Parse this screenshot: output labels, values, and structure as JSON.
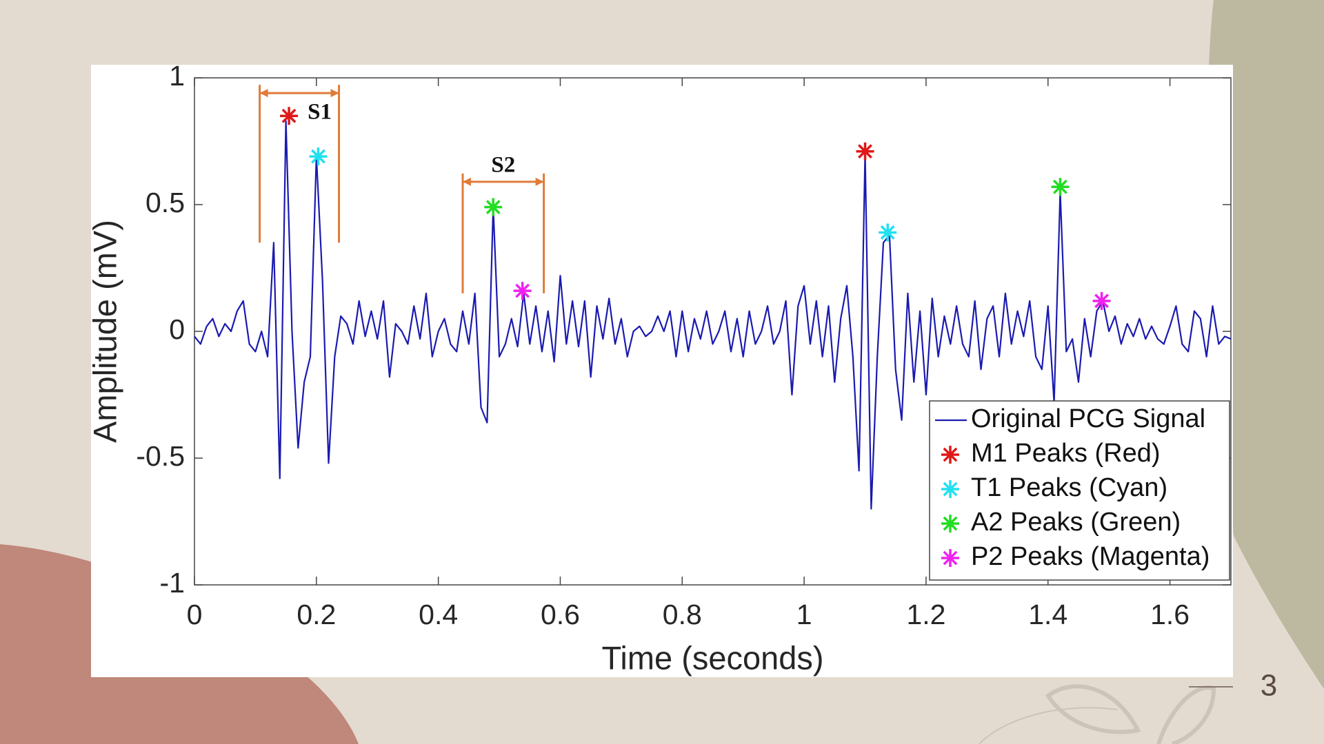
{
  "page_number": "3",
  "chart_data": {
    "type": "line",
    "xlabel": "Time (seconds)",
    "ylabel": "Amplitude (mV)",
    "xlim": [
      0,
      1.7
    ],
    "ylim": [
      -1,
      1
    ],
    "xticks": [
      0,
      0.2,
      0.4,
      0.6,
      0.8,
      1,
      1.2,
      1.4,
      1.6
    ],
    "yticks": [
      -1,
      -0.5,
      0,
      0.5,
      1
    ],
    "grid": false,
    "legend": "lower right",
    "series": [
      {
        "name": "Original PCG Signal",
        "type": "line",
        "color": "#1a1ab0",
        "x": [
          0,
          0.01,
          0.02,
          0.03,
          0.04,
          0.05,
          0.06,
          0.07,
          0.08,
          0.09,
          0.1,
          0.11,
          0.12,
          0.13,
          0.14,
          0.15,
          0.16,
          0.17,
          0.18,
          0.19,
          0.2,
          0.21,
          0.22,
          0.23,
          0.24,
          0.25,
          0.26,
          0.27,
          0.28,
          0.29,
          0.3,
          0.31,
          0.32,
          0.33,
          0.34,
          0.35,
          0.36,
          0.37,
          0.38,
          0.39,
          0.4,
          0.41,
          0.42,
          0.43,
          0.44,
          0.45,
          0.46,
          0.47,
          0.48,
          0.49,
          0.5,
          0.51,
          0.52,
          0.53,
          0.54,
          0.55,
          0.56,
          0.57,
          0.58,
          0.59,
          0.6,
          0.61,
          0.62,
          0.63,
          0.64,
          0.65,
          0.66,
          0.67,
          0.68,
          0.69,
          0.7,
          0.71,
          0.72,
          0.73,
          0.74,
          0.75,
          0.76,
          0.77,
          0.78,
          0.79,
          0.8,
          0.81,
          0.82,
          0.83,
          0.84,
          0.85,
          0.86,
          0.87,
          0.88,
          0.89,
          0.9,
          0.91,
          0.92,
          0.93,
          0.94,
          0.95,
          0.96,
          0.97,
          0.98,
          0.99,
          1,
          1.01,
          1.02,
          1.03,
          1.04,
          1.05,
          1.06,
          1.07,
          1.08,
          1.09,
          1.1,
          1.11,
          1.12,
          1.13,
          1.14,
          1.15,
          1.16,
          1.17,
          1.18,
          1.19,
          1.2,
          1.21,
          1.22,
          1.23,
          1.24,
          1.25,
          1.26,
          1.27,
          1.28,
          1.29,
          1.3,
          1.31,
          1.32,
          1.33,
          1.34,
          1.35,
          1.36,
          1.37,
          1.38,
          1.39,
          1.4,
          1.41,
          1.42,
          1.43,
          1.44,
          1.45,
          1.46,
          1.47,
          1.48,
          1.49,
          1.5,
          1.51,
          1.52,
          1.53,
          1.54,
          1.55,
          1.56,
          1.57,
          1.58,
          1.59,
          1.6,
          1.61,
          1.62,
          1.63,
          1.64,
          1.65,
          1.66,
          1.67,
          1.68,
          1.69,
          1.7
        ],
        "values": [
          -0.02,
          -0.05,
          0.02,
          0.05,
          -0.02,
          0.03,
          0.0,
          0.08,
          0.12,
          -0.05,
          -0.08,
          0.0,
          -0.1,
          0.35,
          -0.58,
          0.83,
          0.0,
          -0.46,
          -0.2,
          -0.1,
          0.69,
          0.2,
          -0.52,
          -0.1,
          0.06,
          0.03,
          -0.05,
          0.12,
          -0.02,
          0.08,
          -0.03,
          0.12,
          -0.18,
          0.03,
          0.0,
          -0.05,
          0.1,
          -0.03,
          0.15,
          -0.1,
          0.0,
          0.05,
          -0.05,
          -0.08,
          0.08,
          -0.05,
          0.15,
          -0.3,
          -0.36,
          0.49,
          -0.1,
          -0.05,
          0.05,
          -0.06,
          0.15,
          -0.05,
          0.1,
          -0.08,
          0.08,
          -0.12,
          0.22,
          -0.05,
          0.12,
          -0.06,
          0.12,
          -0.18,
          0.1,
          -0.03,
          0.13,
          -0.05,
          0.05,
          -0.1,
          0.0,
          0.02,
          -0.02,
          0.0,
          0.06,
          0.0,
          0.08,
          -0.1,
          0.08,
          -0.08,
          0.05,
          -0.03,
          0.08,
          -0.05,
          0.0,
          0.08,
          -0.08,
          0.05,
          -0.1,
          0.08,
          -0.05,
          0.0,
          0.1,
          -0.05,
          0.0,
          0.12,
          -0.25,
          0.1,
          0.18,
          -0.05,
          0.12,
          -0.1,
          0.1,
          -0.2,
          0.05,
          0.18,
          -0.1,
          -0.55,
          0.7,
          -0.7,
          -0.1,
          0.35,
          0.38,
          -0.15,
          -0.35,
          0.15,
          -0.2,
          0.08,
          -0.25,
          0.13,
          -0.1,
          0.06,
          -0.05,
          0.1,
          -0.05,
          -0.1,
          0.12,
          -0.15,
          0.05,
          0.1,
          -0.1,
          0.15,
          -0.05,
          0.08,
          -0.02,
          0.12,
          -0.1,
          -0.15,
          0.1,
          -0.28,
          0.55,
          -0.08,
          -0.03,
          -0.2,
          0.05,
          -0.1,
          0.08,
          0.12,
          0.0,
          0.06,
          -0.05,
          0.03,
          -0.02,
          0.05,
          -0.03,
          0.02,
          -0.03,
          -0.05,
          0.02,
          0.1,
          -0.05,
          -0.08,
          0.08,
          0.05,
          -0.1,
          0.1,
          -0.05,
          -0.02,
          -0.03
        ]
      },
      {
        "name": "M1 Peaks (Red)",
        "type": "scatter",
        "color": "#e01818",
        "x": [
          0.155,
          1.1
        ],
        "values": [
          0.85,
          0.71
        ]
      },
      {
        "name": "T1 Peaks (Cyan)",
        "type": "scatter",
        "color": "#22e0f0",
        "x": [
          0.203,
          1.137
        ],
        "values": [
          0.69,
          0.39
        ]
      },
      {
        "name": "A2 Peaks (Green)",
        "type": "scatter",
        "color": "#22dd22",
        "x": [
          0.49,
          1.42
        ],
        "values": [
          0.49,
          0.57
        ]
      },
      {
        "name": "P2 Peaks (Magenta)",
        "type": "scatter",
        "color": "#ee22ee",
        "x": [
          0.538,
          1.488
        ],
        "values": [
          0.16,
          0.12
        ]
      }
    ],
    "annotations": [
      {
        "label": "S1",
        "color": "#e07b39",
        "x": [
          0.107,
          0.237
        ],
        "y": 0.94,
        "base": 0.35
      },
      {
        "label": "S2",
        "color": "#e07b39",
        "x": [
          0.44,
          0.573
        ],
        "y": 0.59,
        "base": 0.15
      }
    ]
  }
}
